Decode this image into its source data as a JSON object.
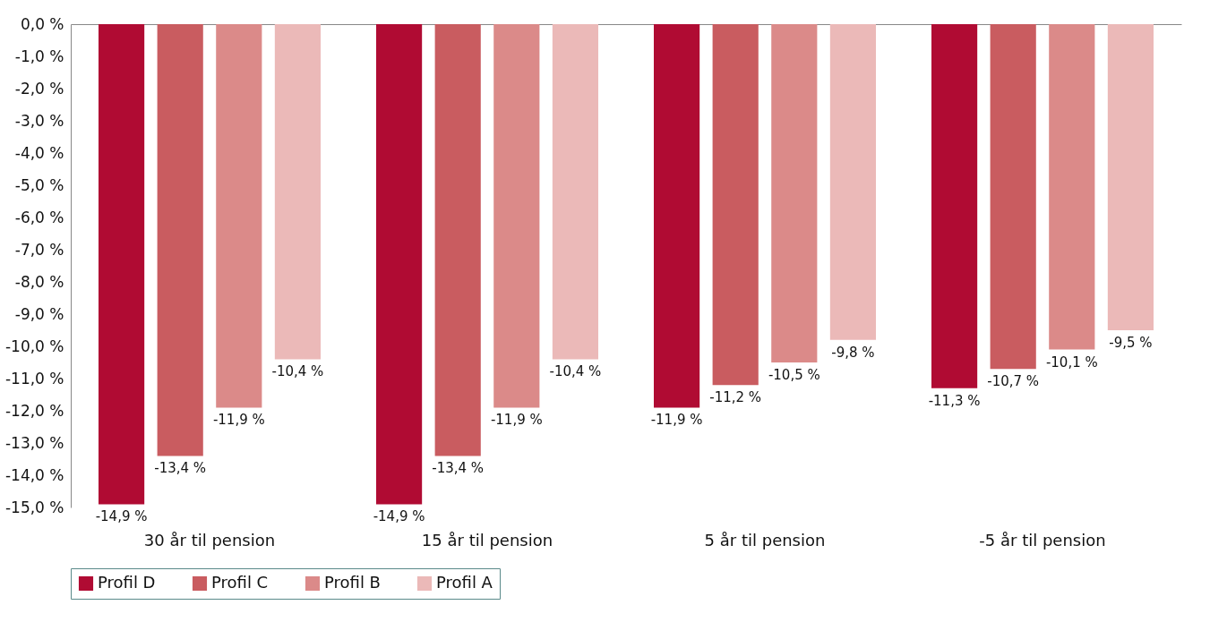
{
  "chart_data": {
    "type": "bar",
    "categories": [
      "30 år til pension",
      "15 år til pension",
      "5 år til pension",
      "-5 år til pension"
    ],
    "series": [
      {
        "name": "Profil D",
        "color": "#b00b33",
        "values": [
          -14.9,
          -14.9,
          -11.9,
          -11.3
        ],
        "value_labels": [
          "-14,9 %",
          "-14,9 %",
          "-11,9 %",
          "-11,3 %"
        ]
      },
      {
        "name": "Profil C",
        "color": "#c95c60",
        "values": [
          -13.4,
          -13.4,
          -11.2,
          -10.7
        ],
        "value_labels": [
          "-13,4 %",
          "-13,4 %",
          "-11,2 %",
          "-10,7 %"
        ]
      },
      {
        "name": "Profil B",
        "color": "#db8a89",
        "values": [
          -11.9,
          -11.9,
          -10.5,
          -10.1
        ],
        "value_labels": [
          "-11,9 %",
          "-11,9 %",
          "-10,5 %",
          "-10,1 %"
        ]
      },
      {
        "name": "Profil A",
        "color": "#ebb9b8",
        "values": [
          -10.4,
          -10.4,
          -9.8,
          -9.5
        ],
        "value_labels": [
          "-10,4 %",
          "-10,4 %",
          "-9,8 %",
          "-9,5 %"
        ]
      }
    ],
    "ylim": [
      -15,
      0
    ],
    "yticks": [
      {
        "value": 0,
        "label": "0,0 %"
      },
      {
        "value": -1,
        "label": "-1,0 %"
      },
      {
        "value": -2,
        "label": "-2,0 %"
      },
      {
        "value": -3,
        "label": "-3,0 %"
      },
      {
        "value": -4,
        "label": "-4,0 %"
      },
      {
        "value": -5,
        "label": "-5,0 %"
      },
      {
        "value": -6,
        "label": "-6,0 %"
      },
      {
        "value": -7,
        "label": "-7,0 %"
      },
      {
        "value": -8,
        "label": "-8,0 %"
      },
      {
        "value": -9,
        "label": "-9,0 %"
      },
      {
        "value": -10,
        "label": "-10,0 %"
      },
      {
        "value": -11,
        "label": "-11,0 %"
      },
      {
        "value": -12,
        "label": "-12,0 %"
      },
      {
        "value": -13,
        "label": "-13,0 %"
      },
      {
        "value": -14,
        "label": "-14,0 %"
      },
      {
        "value": -15,
        "label": "-15,0 %"
      }
    ],
    "grid": false,
    "legend": "bottom"
  }
}
